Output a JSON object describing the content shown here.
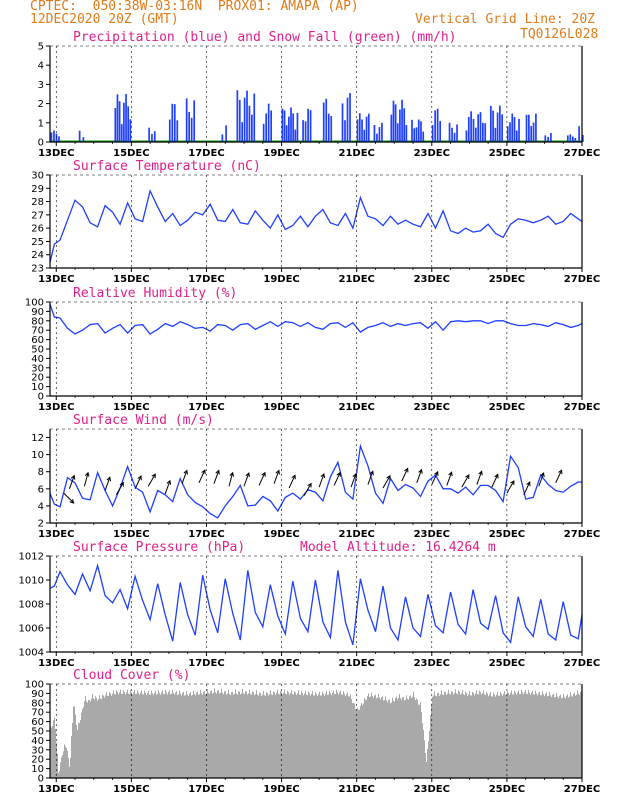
{
  "header": {
    "line1": "CPTEC:  050:38W-03:16N  PROX01: AMAPA (AP)",
    "date": "12DEC2020 20Z (GMT)",
    "grid_note": "Vertical Grid Line: 20Z",
    "code": "TQ0126L028"
  },
  "colors": {
    "header": "#e07b1a",
    "title": "#e0208a",
    "line": "#1f3fff",
    "snow": "#00a000",
    "cloud": "#a9a9a9"
  },
  "chart_data": [
    {
      "id": "precip",
      "type": "bar",
      "title": "Precipitation (blue) and Snow Fall (green) (mm/h)",
      "ylim": [
        0,
        5
      ],
      "yticks": [
        0,
        1,
        2,
        3,
        4,
        5
      ],
      "xlim_days": [
        12.8333,
        27.0
      ],
      "xticks": [
        "13DEC",
        "15DEC",
        "17DEC",
        "19DEC",
        "21DEC",
        "23DEC",
        "25DEC",
        "27DEC"
      ],
      "xtick_days": [
        13,
        15,
        17,
        19,
        21,
        23,
        25,
        27
      ],
      "snow_value": 0,
      "bursts": [
        {
          "d": [
            12.85,
            13.05
          ],
          "max": 0.6
        },
        {
          "d": [
            13.6,
            13.7
          ],
          "max": 0.7
        },
        {
          "d": [
            14.55,
            14.95
          ],
          "max": 2.5
        },
        {
          "d": [
            15.45,
            15.6
          ],
          "max": 0.8
        },
        {
          "d": [
            16.0,
            16.2
          ],
          "max": 2.1
        },
        {
          "d": [
            16.45,
            16.65
          ],
          "max": 2.3
        },
        {
          "d": [
            17.4,
            17.5
          ],
          "max": 1.0
        },
        {
          "d": [
            17.8,
            18.25
          ],
          "max": 2.7
        },
        {
          "d": [
            18.5,
            18.7
          ],
          "max": 2.0
        },
        {
          "d": [
            19.0,
            19.4
          ],
          "max": 1.8
        },
        {
          "d": [
            19.55,
            19.75
          ],
          "max": 1.8
        },
        {
          "d": [
            20.1,
            20.3
          ],
          "max": 2.3
        },
        {
          "d": [
            20.6,
            20.8
          ],
          "max": 2.6
        },
        {
          "d": [
            21.0,
            21.3
          ],
          "max": 1.5
        },
        {
          "d": [
            21.45,
            21.65
          ],
          "max": 1.0
        },
        {
          "d": [
            21.9,
            22.3
          ],
          "max": 2.2
        },
        {
          "d": [
            22.45,
            22.75
          ],
          "max": 1.2
        },
        {
          "d": [
            23.0,
            23.2
          ],
          "max": 1.8
        },
        {
          "d": [
            23.45,
            23.65
          ],
          "max": 1.0
        },
        {
          "d": [
            23.9,
            24.4
          ],
          "max": 1.6
        },
        {
          "d": [
            24.55,
            24.85
          ],
          "max": 1.9
        },
        {
          "d": [
            25.0,
            25.3
          ],
          "max": 1.5
        },
        {
          "d": [
            25.5,
            25.75
          ],
          "max": 1.5
        },
        {
          "d": [
            26.0,
            26.15
          ],
          "max": 0.5
        },
        {
          "d": [
            26.6,
            26.8
          ],
          "max": 0.4
        },
        {
          "d": [
            26.9,
            27.0
          ],
          "max": 1.0
        }
      ]
    },
    {
      "id": "temp",
      "type": "line",
      "title": "Surface Temperature (nC)",
      "ylim": [
        23,
        30
      ],
      "yticks": [
        23,
        24,
        25,
        26,
        27,
        28,
        29,
        30
      ],
      "x": [
        12.83,
        12.95,
        13.1,
        13.3,
        13.5,
        13.7,
        13.9,
        14.1,
        14.3,
        14.5,
        14.7,
        14.9,
        15.1,
        15.3,
        15.5,
        15.7,
        15.9,
        16.1,
        16.3,
        16.5,
        16.7,
        16.9,
        17.1,
        17.3,
        17.5,
        17.7,
        17.9,
        18.1,
        18.3,
        18.5,
        18.7,
        18.9,
        19.1,
        19.3,
        19.5,
        19.7,
        19.9,
        20.1,
        20.3,
        20.5,
        20.7,
        20.9,
        21.1,
        21.3,
        21.5,
        21.7,
        21.9,
        22.1,
        22.3,
        22.5,
        22.7,
        22.9,
        23.1,
        23.3,
        23.5,
        23.7,
        23.9,
        24.1,
        24.3,
        24.5,
        24.7,
        24.9,
        25.1,
        25.3,
        25.5,
        25.7,
        25.9,
        26.1,
        26.3,
        26.5,
        26.7,
        26.9,
        27.0
      ],
      "y": [
        23.4,
        24.8,
        25.1,
        26.6,
        28.1,
        27.6,
        26.4,
        26.1,
        27.7,
        27.2,
        26.3,
        27.9,
        26.7,
        26.5,
        28.8,
        27.6,
        26.5,
        27.1,
        26.2,
        26.6,
        27.2,
        27.0,
        27.8,
        26.6,
        26.5,
        27.4,
        26.4,
        26.3,
        27.3,
        26.6,
        26.0,
        27.0,
        25.9,
        26.2,
        26.9,
        26.1,
        26.9,
        27.4,
        26.4,
        26.2,
        27.1,
        26.0,
        28.3,
        26.9,
        26.7,
        26.2,
        26.9,
        26.3,
        26.6,
        26.3,
        26.1,
        27.1,
        26.0,
        27.3,
        25.8,
        25.6,
        26.0,
        25.7,
        25.8,
        26.3,
        25.6,
        25.3,
        26.3,
        26.7,
        26.6,
        26.4,
        26.6,
        26.9,
        26.3,
        26.5,
        27.1,
        26.7,
        26.5
      ]
    },
    {
      "id": "rh",
      "type": "line",
      "title": "Relative Humidity (%)",
      "ylim": [
        0,
        100
      ],
      "yticks": [
        0,
        10,
        20,
        30,
        40,
        50,
        60,
        70,
        80,
        90,
        100
      ],
      "x": [
        12.83,
        12.95,
        13.1,
        13.3,
        13.5,
        13.7,
        13.9,
        14.1,
        14.3,
        14.5,
        14.7,
        14.9,
        15.1,
        15.3,
        15.5,
        15.7,
        15.9,
        16.1,
        16.3,
        16.5,
        16.7,
        16.9,
        17.1,
        17.3,
        17.5,
        17.7,
        17.9,
        18.1,
        18.3,
        18.5,
        18.7,
        18.9,
        19.1,
        19.3,
        19.5,
        19.7,
        19.9,
        20.1,
        20.3,
        20.5,
        20.7,
        20.9,
        21.1,
        21.3,
        21.5,
        21.7,
        21.9,
        22.1,
        22.3,
        22.5,
        22.7,
        22.9,
        23.1,
        23.3,
        23.5,
        23.7,
        23.9,
        24.1,
        24.3,
        24.5,
        24.7,
        24.9,
        25.1,
        25.3,
        25.5,
        25.7,
        25.9,
        26.1,
        26.3,
        26.5,
        26.7,
        26.9,
        27.0
      ],
      "y": [
        98,
        84,
        83,
        72,
        66,
        70,
        76,
        77,
        67,
        72,
        76,
        67,
        75,
        76,
        66,
        71,
        77,
        74,
        79,
        76,
        72,
        73,
        69,
        76,
        75,
        70,
        76,
        77,
        71,
        75,
        79,
        74,
        79,
        78,
        74,
        78,
        73,
        71,
        77,
        78,
        73,
        78,
        68,
        73,
        75,
        78,
        74,
        77,
        75,
        77,
        78,
        72,
        79,
        70,
        79,
        80,
        79,
        80,
        80,
        77,
        80,
        80,
        77,
        75,
        75,
        77,
        76,
        74,
        78,
        76,
        73,
        75,
        77
      ]
    },
    {
      "id": "wind",
      "type": "line",
      "title": "Surface Wind (m/s)",
      "ylim": [
        2,
        13
      ],
      "yticks": [
        2,
        4,
        6,
        8,
        10,
        12
      ],
      "x": [
        12.83,
        12.95,
        13.1,
        13.3,
        13.5,
        13.7,
        13.9,
        14.1,
        14.3,
        14.5,
        14.7,
        14.9,
        15.1,
        15.3,
        15.5,
        15.7,
        15.9,
        16.1,
        16.3,
        16.5,
        16.7,
        16.9,
        17.1,
        17.3,
        17.5,
        17.7,
        17.9,
        18.1,
        18.3,
        18.5,
        18.7,
        18.9,
        19.1,
        19.3,
        19.5,
        19.7,
        19.9,
        20.1,
        20.3,
        20.5,
        20.7,
        20.9,
        21.1,
        21.3,
        21.5,
        21.7,
        21.9,
        22.1,
        22.3,
        22.5,
        22.7,
        22.9,
        23.1,
        23.3,
        23.5,
        23.7,
        23.9,
        24.1,
        24.3,
        24.5,
        24.7,
        24.9,
        25.1,
        25.3,
        25.5,
        25.7,
        25.9,
        26.1,
        26.3,
        26.5,
        26.7,
        26.9,
        27.0
      ],
      "y": [
        5.5,
        4.2,
        3.9,
        7.3,
        6.7,
        4.9,
        4.7,
        7.9,
        5.8,
        4.0,
        6.1,
        8.6,
        6.2,
        5.6,
        3.3,
        5.8,
        5.3,
        4.5,
        7.2,
        5.3,
        4.4,
        3.9,
        3.1,
        2.6,
        4.0,
        5.1,
        6.4,
        4.0,
        4.1,
        5.1,
        4.6,
        3.4,
        5.0,
        5.5,
        4.8,
        5.9,
        5.6,
        4.6,
        7.4,
        9.1,
        5.6,
        4.8,
        11.0,
        8.7,
        5.5,
        4.3,
        7.2,
        5.8,
        6.5,
        6.1,
        5.1,
        6.9,
        7.6,
        6.0,
        6.0,
        5.5,
        6.2,
        5.3,
        6.4,
        6.4,
        5.8,
        4.5,
        9.8,
        8.5,
        4.8,
        5.0,
        7.6,
        6.5,
        5.8,
        5.6,
        6.3,
        6.8,
        6.8
      ],
      "arrows": [
        {
          "d": 13.2,
          "s": 5.5,
          "dir": 135
        },
        {
          "d": 13.35,
          "s": 6.0,
          "dir": 250
        },
        {
          "d": 13.75,
          "s": 6.3,
          "dir": 255
        },
        {
          "d": 14.3,
          "s": 5.8,
          "dir": 250
        },
        {
          "d": 14.6,
          "s": 5.3,
          "dir": 240
        },
        {
          "d": 15.1,
          "s": 6.0,
          "dir": 245
        },
        {
          "d": 15.45,
          "s": 6.3,
          "dir": 240
        },
        {
          "d": 15.9,
          "s": 5.4,
          "dir": 250
        },
        {
          "d": 16.35,
          "s": 6.6,
          "dir": 250
        },
        {
          "d": 16.8,
          "s": 6.7,
          "dir": 245
        },
        {
          "d": 17.2,
          "s": 6.6,
          "dir": 250
        },
        {
          "d": 17.6,
          "s": 6.3,
          "dir": 255
        },
        {
          "d": 18.0,
          "s": 6.3,
          "dir": 250
        },
        {
          "d": 18.4,
          "s": 6.4,
          "dir": 245
        },
        {
          "d": 18.8,
          "s": 6.6,
          "dir": 250
        },
        {
          "d": 19.2,
          "s": 6.1,
          "dir": 245
        },
        {
          "d": 19.6,
          "s": 5.2,
          "dir": 240
        },
        {
          "d": 20.0,
          "s": 6.2,
          "dir": 250
        },
        {
          "d": 20.4,
          "s": 6.4,
          "dir": 245
        },
        {
          "d": 20.85,
          "s": 6.2,
          "dir": 250
        },
        {
          "d": 21.3,
          "s": 6.5,
          "dir": 250
        },
        {
          "d": 21.7,
          "s": 6.1,
          "dir": 240
        },
        {
          "d": 22.2,
          "s": 6.9,
          "dir": 245
        },
        {
          "d": 22.6,
          "s": 6.7,
          "dir": 250
        },
        {
          "d": 23.0,
          "s": 6.5,
          "dir": 245
        },
        {
          "d": 23.4,
          "s": 6.4,
          "dir": 250
        },
        {
          "d": 23.8,
          "s": 6.2,
          "dir": 240
        },
        {
          "d": 24.2,
          "s": 6.5,
          "dir": 250
        },
        {
          "d": 24.6,
          "s": 6.2,
          "dir": 245
        },
        {
          "d": 25.0,
          "s": 5.5,
          "dir": 240
        },
        {
          "d": 25.45,
          "s": 5.3,
          "dir": 245
        },
        {
          "d": 25.85,
          "s": 6.3,
          "dir": 250
        },
        {
          "d": 26.3,
          "s": 6.7,
          "dir": 245
        }
      ]
    },
    {
      "id": "press",
      "type": "line",
      "title": "Surface Pressure (hPa)",
      "subtitle": "Model Altitude: 16.4264 m",
      "ylim": [
        1004,
        1012
      ],
      "yticks": [
        1004,
        1006,
        1008,
        1010,
        1012
      ],
      "x": [
        12.83,
        12.95,
        13.1,
        13.3,
        13.5,
        13.7,
        13.9,
        14.1,
        14.3,
        14.5,
        14.7,
        14.9,
        15.1,
        15.3,
        15.5,
        15.7,
        15.9,
        16.1,
        16.3,
        16.5,
        16.7,
        16.9,
        17.1,
        17.3,
        17.5,
        17.7,
        17.9,
        18.1,
        18.3,
        18.5,
        18.7,
        18.9,
        19.1,
        19.3,
        19.5,
        19.7,
        19.9,
        20.1,
        20.3,
        20.5,
        20.7,
        20.9,
        21.1,
        21.3,
        21.5,
        21.7,
        21.9,
        22.1,
        22.3,
        22.5,
        22.7,
        22.9,
        23.1,
        23.3,
        23.5,
        23.7,
        23.9,
        24.1,
        24.3,
        24.5,
        24.7,
        24.9,
        25.1,
        25.3,
        25.5,
        25.7,
        25.9,
        26.1,
        26.3,
        26.5,
        26.7,
        26.9,
        27.0
      ],
      "y": [
        1009.3,
        1009.5,
        1010.7,
        1009.6,
        1008.8,
        1010.5,
        1009.1,
        1011.2,
        1008.7,
        1008.1,
        1009.2,
        1007.6,
        1010.3,
        1008.3,
        1006.7,
        1009.7,
        1007.1,
        1004.9,
        1009.8,
        1007.1,
        1005.4,
        1010.4,
        1007.5,
        1005.6,
        1010.1,
        1007.2,
        1005.0,
        1010.8,
        1007.3,
        1006.1,
        1009.6,
        1007.0,
        1005.5,
        1009.9,
        1006.8,
        1005.7,
        1010.0,
        1006.5,
        1005.2,
        1010.8,
        1006.5,
        1004.6,
        1010.1,
        1007.5,
        1005.7,
        1009.5,
        1006.0,
        1005.0,
        1008.6,
        1006.0,
        1005.3,
        1008.8,
        1006.2,
        1005.6,
        1009.0,
        1006.3,
        1005.5,
        1009.2,
        1006.4,
        1005.9,
        1008.7,
        1005.6,
        1004.8,
        1008.6,
        1006.1,
        1005.3,
        1008.4,
        1005.5,
        1005.0,
        1008.2,
        1005.4,
        1005.1,
        1007.1
      ]
    },
    {
      "id": "cloud",
      "type": "area",
      "title": "Cloud Cover (%)",
      "ylim": [
        0,
        100
      ],
      "yticks": [
        0,
        10,
        20,
        30,
        40,
        50,
        60,
        70,
        80,
        90,
        100
      ],
      "x": [
        12.83,
        12.95,
        13.05,
        13.15,
        13.25,
        13.35,
        13.45,
        13.55,
        13.65,
        13.75,
        13.85,
        13.95,
        14.1,
        14.3,
        14.6,
        15.0,
        15.5,
        16.0,
        16.5,
        17.0,
        17.3,
        17.6,
        18.0,
        18.5,
        19.0,
        19.5,
        20.0,
        20.5,
        20.8,
        21.0,
        21.3,
        21.6,
        21.9,
        22.1,
        22.3,
        22.5,
        22.7,
        22.85,
        23.0,
        23.3,
        23.7,
        24.0,
        24.3,
        24.6,
        25.0,
        25.5,
        26.0,
        26.5,
        27.0
      ],
      "y": [
        55,
        68,
        8,
        30,
        40,
        15,
        85,
        55,
        70,
        88,
        85,
        90,
        88,
        92,
        95,
        95,
        94,
        95,
        93,
        95,
        96,
        94,
        95,
        93,
        95,
        94,
        93,
        95,
        92,
        75,
        92,
        90,
        85,
        90,
        88,
        92,
        80,
        20,
        92,
        94,
        95,
        93,
        95,
        92,
        94,
        95,
        93,
        90,
        95
      ]
    }
  ]
}
